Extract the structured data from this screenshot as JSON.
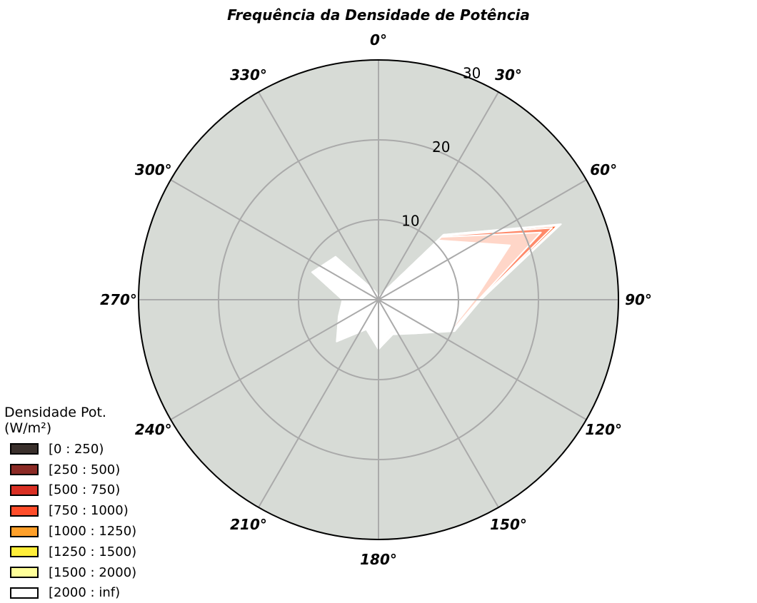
{
  "chart_data": {
    "type": "polar-area",
    "title": "Frequência da Densidade de Potência",
    "direction": "clockwise",
    "zero_location": "top",
    "theta_tick_labels": [
      "0°",
      "30°",
      "60°",
      "90°",
      "120°",
      "150°",
      "180°",
      "210°",
      "240°",
      "270°",
      "300°",
      "330°"
    ],
    "r_ticks": [
      10,
      20,
      30
    ],
    "r_tick_labels": [
      "10",
      "20",
      "30"
    ],
    "rlim": [
      0,
      30
    ],
    "background_color": "#d7dbd6",
    "grid": true,
    "legend": {
      "title": "Densidade Pot.\n(W/m²)",
      "placement": "lower-left"
    },
    "directions_deg": [
      0,
      22.5,
      45,
      67.5,
      90,
      112.5,
      135,
      157.5,
      180,
      202.5,
      225,
      247.5,
      270,
      292.5,
      315,
      337.5
    ],
    "series": [
      {
        "name": "[0 : 250)",
        "color": "#3a302c",
        "cum_values": [
          0.4,
          0.6,
          9.5,
          9.1,
          10.5,
          9.0,
          5.2,
          4.0,
          5.5,
          3.6,
          6.7,
          5.0,
          4.2,
          8.3,
          7.1,
          1.1
        ]
      },
      {
        "name": "[250 : 500)",
        "color": "#8b2a25",
        "cum_values": [
          0.4,
          0.6,
          10.5,
          17.8,
          12.0,
          9.8,
          5.6,
          4.3,
          5.8,
          3.8,
          7.0,
          5.1,
          4.3,
          8.5,
          7.3,
          1.1
        ]
      },
      {
        "name": "[500 : 750)",
        "color": "#d93024",
        "cum_values": [
          0.4,
          0.6,
          11.1,
          22.0,
          12.5,
          10.0,
          5.8,
          4.5,
          6.0,
          3.9,
          7.2,
          5.2,
          4.4,
          8.7,
          7.4,
          1.1
        ]
      },
      {
        "name": "[750 : 1000)",
        "color": "#ff4d2a",
        "cum_values": [
          0.4,
          0.6,
          11.3,
          23.5,
          12.6,
          10.1,
          5.9,
          4.6,
          6.1,
          3.9,
          7.3,
          5.3,
          4.4,
          8.8,
          7.5,
          1.1
        ]
      },
      {
        "name": "[1000 : 1250)",
        "color": "#ffa02a",
        "cum_values": [
          0.4,
          0.6,
          11.4,
          24.2,
          12.7,
          10.2,
          5.9,
          4.6,
          6.1,
          4.0,
          7.3,
          5.3,
          4.5,
          8.9,
          7.5,
          1.1
        ]
      },
      {
        "name": "[1250 : 1500)",
        "color": "#ffee3a",
        "cum_values": [
          0.4,
          0.6,
          11.4,
          24.4,
          12.7,
          10.2,
          5.9,
          4.6,
          6.1,
          4.0,
          7.3,
          5.3,
          4.5,
          8.9,
          7.6,
          1.1
        ]
      },
      {
        "name": "[1500 : 2000)",
        "color": "#ffff9a",
        "cum_values": [
          0.4,
          0.6,
          11.5,
          24.6,
          12.8,
          10.2,
          6.0,
          4.6,
          6.2,
          4.0,
          7.4,
          5.3,
          4.5,
          9.0,
          7.6,
          1.1
        ]
      },
      {
        "name": "[2000 : inf)",
        "color": "#ffffff",
        "cum_values": [
          0.4,
          0.6,
          11.5,
          24.7,
          12.8,
          10.3,
          6.0,
          4.7,
          6.2,
          4.0,
          7.4,
          5.4,
          4.5,
          9.0,
          7.6,
          1.1
        ]
      }
    ],
    "fill_order": [
      "#ffffff",
      "#ffffff",
      "#ffd6c8",
      "#ff8a6a",
      "#ff5a1e",
      "#e61c0c",
      "#7c0000",
      "#250000"
    ]
  }
}
